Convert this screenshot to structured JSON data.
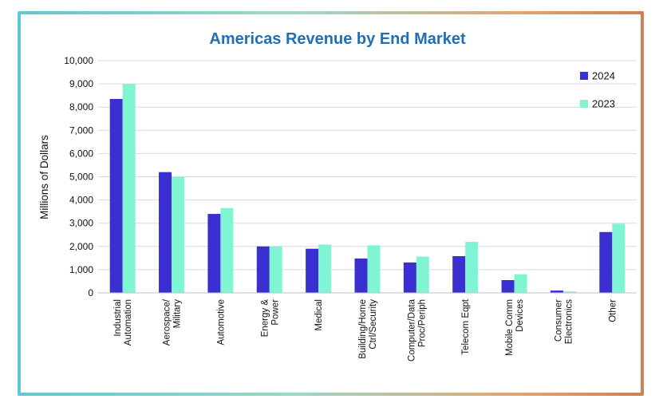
{
  "chart_data": {
    "type": "bar",
    "title": "Americas Revenue by End Market",
    "ylabel": "Millions of Dollars",
    "xlabel": "",
    "ylim": [
      0,
      10000
    ],
    "yticks": [
      "0",
      "1,000",
      "2,000",
      "3,000",
      "4,000",
      "5,000",
      "6,000",
      "7,000",
      "8,000",
      "9,000",
      "10,000"
    ],
    "categories": [
      [
        "Industrial",
        "Automation"
      ],
      [
        "Aerospace/",
        "Military"
      ],
      [
        "Automotive"
      ],
      [
        "Energy &",
        "Power"
      ],
      [
        "Medical"
      ],
      [
        "Building/Home",
        "Ctrl/Security"
      ],
      [
        "Computer/Data",
        "Proc/Periph"
      ],
      [
        "Telecom Eqpt"
      ],
      [
        "Mobile Comm",
        "Devices"
      ],
      [
        "Consumer",
        "Electronics"
      ],
      [
        "Other"
      ]
    ],
    "series": [
      {
        "name": "2024",
        "color": "#3a2fd0",
        "values": [
          8350,
          5200,
          3400,
          2000,
          1900,
          1480,
          1310,
          1580,
          550,
          100,
          2620
        ]
      },
      {
        "name": "2023",
        "color": "#7ff5d4",
        "values": [
          9000,
          5000,
          3650,
          2000,
          2080,
          2050,
          1560,
          2200,
          800,
          60,
          2980
        ]
      }
    ],
    "grid": true,
    "legend_position": "top-right"
  }
}
